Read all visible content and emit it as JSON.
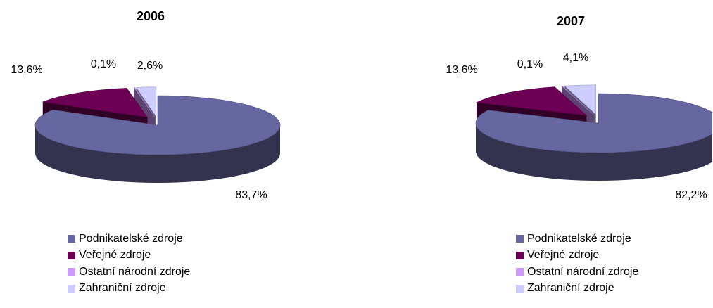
{
  "chart_data": [
    {
      "type": "pie",
      "title": "2006",
      "categories": [
        "Podnikatelské zdroje",
        "Veřejné zdroje",
        "Ostatní národní zdroje",
        "Zahraniční zdroje"
      ],
      "values": [
        83.7,
        13.6,
        0.1,
        2.6
      ],
      "labels": [
        "83,7%",
        "13,6%",
        "0,1%",
        "2,6%"
      ],
      "colors": [
        "#6666a0",
        "#6b0054",
        "#cc99ff",
        "#ccccff"
      ],
      "exploded": true,
      "three_d": true,
      "legend_position": "bottom"
    },
    {
      "type": "pie",
      "title": "2007",
      "categories": [
        "Podnikatelské zdroje",
        "Veřejné zdroje",
        "Ostatní národní zdroje",
        "Zahraniční zdroje"
      ],
      "values": [
        82.2,
        13.6,
        0.1,
        4.1
      ],
      "labels": [
        "82,2%",
        "13,6%",
        "0,1%",
        "4,1%"
      ],
      "colors": [
        "#6666a0",
        "#6b0054",
        "#cc99ff",
        "#ccccff"
      ],
      "exploded": true,
      "three_d": true,
      "legend_position": "bottom"
    }
  ]
}
